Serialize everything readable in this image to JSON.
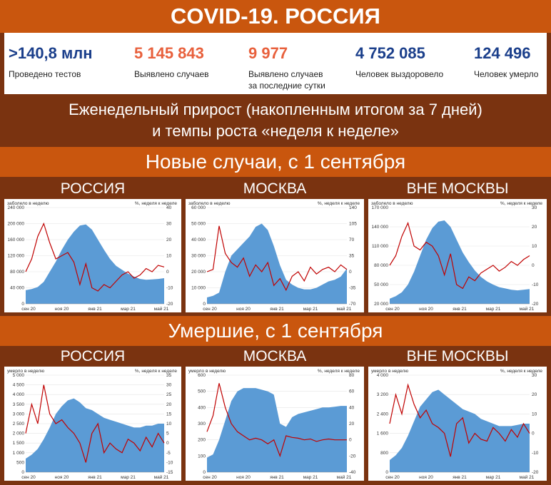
{
  "title": "COVID-19. РОССИЯ",
  "stats": [
    {
      "value": ">140,8 млн",
      "label": "Проведено тестов",
      "color": "#1b3f8b"
    },
    {
      "value": "5 145 843",
      "label": "Выявлено случаев",
      "color": "#e8603c"
    },
    {
      "value": "9 977",
      "label": "Выявлено случаев\nза последние сутки",
      "color": "#e8603c"
    },
    {
      "value": "4 752 085",
      "label": "Человек выздоровело",
      "color": "#1b3f8b"
    },
    {
      "value": "124 496",
      "label": "Человек умерло",
      "color": "#1b3f8b"
    }
  ],
  "subtitle_line1": "Еженедельный прирост (накопленным итогом за 7 дней)",
  "subtitle_line2": "и темпы роста «неделя к неделе»",
  "section_cases": "Новые случаи, с 1 сентября",
  "section_deaths": "Умершие, с 1 сентября",
  "region_labels": [
    "РОССИЯ",
    "МОСКВА",
    "ВНЕ МОСКВЫ"
  ],
  "colors": {
    "area": "#5b9bd5",
    "line": "#c00000"
  },
  "chart_data": [
    {
      "type": "area",
      "name": "cases-russia",
      "ylabel_left": "заболело в неделю",
      "ylabel_right": "%, неделя к неделе",
      "x_ticks": [
        "сен 20",
        "ноя 20",
        "янв 21",
        "мар 21",
        "май 21"
      ],
      "y_left_ticks": [
        "240 000",
        "200 000",
        "160 000",
        "120 000",
        "80 000",
        "40 000",
        "0"
      ],
      "y_left_lim": [
        0,
        240000
      ],
      "y_right_ticks": [
        "40",
        "30",
        "20",
        "10",
        "0",
        "-10",
        "-20"
      ],
      "y_right_lim": [
        -20,
        40
      ],
      "area_values": [
        34000,
        37000,
        42000,
        55000,
        80000,
        105000,
        135000,
        160000,
        180000,
        195000,
        198000,
        185000,
        160000,
        135000,
        112000,
        95000,
        85000,
        75000,
        68000,
        62000,
        60000,
        61000,
        62000,
        64000
      ],
      "line_values": [
        0,
        8,
        22,
        30,
        18,
        8,
        10,
        12,
        6,
        -8,
        5,
        -10,
        -12,
        -8,
        -10,
        -6,
        -2,
        0,
        -4,
        -2,
        2,
        0,
        4,
        3
      ]
    },
    {
      "type": "area",
      "name": "cases-moscow",
      "ylabel_left": "заболело в неделю",
      "ylabel_right": "%, неделя к неделе",
      "x_ticks": [
        "сен 20",
        "ноя 20",
        "янв 21",
        "мар 21",
        "май 21"
      ],
      "y_left_ticks": [
        "60 000",
        "50 000",
        "40 000",
        "30 000",
        "20 000",
        "10 000",
        "0"
      ],
      "y_left_lim": [
        0,
        60000
      ],
      "y_right_ticks": [
        "140",
        "105",
        "70",
        "35",
        "0",
        "-35",
        "-70"
      ],
      "y_right_lim": [
        -70,
        140
      ],
      "area_values": [
        4000,
        5000,
        7000,
        20000,
        30000,
        34000,
        38000,
        42000,
        48000,
        50000,
        46000,
        36000,
        24000,
        15000,
        12000,
        10000,
        9000,
        9000,
        10000,
        12000,
        14000,
        15000,
        17000,
        22000
      ],
      "line_values": [
        0,
        5,
        100,
        40,
        20,
        10,
        30,
        -10,
        15,
        0,
        20,
        -30,
        -15,
        -40,
        -10,
        0,
        -20,
        10,
        -5,
        5,
        10,
        0,
        15,
        5
      ]
    },
    {
      "type": "area",
      "name": "cases-outside",
      "ylabel_left": "заболело в неделю",
      "ylabel_right": "%, неделя к неделе",
      "x_ticks": [
        "сен 20",
        "ноя 20",
        "янв 21",
        "мар 21",
        "май 21"
      ],
      "y_left_ticks": [
        "170 000",
        "140 000",
        "110 000",
        "80 000",
        "50 000",
        "20 000"
      ],
      "y_left_lim": [
        20000,
        170000
      ],
      "y_right_ticks": [
        "30",
        "20",
        "10",
        "0",
        "-10",
        "-20"
      ],
      "y_right_lim": [
        -20,
        30
      ],
      "area_values": [
        28000,
        32000,
        38000,
        50000,
        70000,
        95000,
        120000,
        138000,
        148000,
        150000,
        140000,
        120000,
        100000,
        85000,
        72000,
        62000,
        55000,
        50000,
        46000,
        44000,
        42000,
        41000,
        42000,
        43000
      ],
      "line_values": [
        0,
        5,
        15,
        22,
        10,
        8,
        12,
        10,
        5,
        -5,
        6,
        -10,
        -12,
        -6,
        -8,
        -4,
        -2,
        0,
        -3,
        -1,
        2,
        0,
        3,
        5
      ]
    },
    {
      "type": "area",
      "name": "deaths-russia",
      "ylabel_left": "умерло в неделю",
      "ylabel_right": "%, неделя к неделе",
      "x_ticks": [
        "сен 20",
        "ноя 20",
        "янв 21",
        "мар 21",
        "май 21"
      ],
      "y_left_ticks": [
        "5 000",
        "4 500",
        "4 000",
        "3 500",
        "3 000",
        "2 500",
        "2 000",
        "1 500",
        "1 000",
        "500",
        "0"
      ],
      "y_left_lim": [
        0,
        5000
      ],
      "y_right_ticks": [
        "35",
        "30",
        "25",
        "20",
        "15",
        "10",
        "5",
        "0",
        "-5",
        "-10",
        "-15"
      ],
      "y_right_lim": [
        -15,
        35
      ],
      "area_values": [
        700,
        900,
        1200,
        1700,
        2300,
        3000,
        3400,
        3700,
        3800,
        3600,
        3300,
        3200,
        3000,
        2800,
        2700,
        2600,
        2500,
        2400,
        2300,
        2300,
        2400,
        2400,
        2500,
        2500
      ],
      "line_values": [
        5,
        20,
        10,
        30,
        15,
        10,
        12,
        8,
        5,
        0,
        -10,
        5,
        10,
        -5,
        0,
        -3,
        -5,
        2,
        0,
        -4,
        3,
        -2,
        5,
        0
      ]
    },
    {
      "type": "area",
      "name": "deaths-moscow",
      "ylabel_left": "умерло в неделю",
      "ylabel_right": "%, неделя к неделе",
      "x_ticks": [
        "сен 20",
        "ноя 20",
        "янв 21",
        "мар 21",
        "май 21"
      ],
      "y_left_ticks": [
        "600",
        "500",
        "400",
        "300",
        "200",
        "100",
        "0"
      ],
      "y_left_lim": [
        0,
        600
      ],
      "y_right_ticks": [
        "80",
        "60",
        "40",
        "20",
        "0",
        "-20",
        "-40"
      ],
      "y_right_lim": [
        -40,
        80
      ],
      "area_values": [
        90,
        110,
        200,
        320,
        440,
        500,
        520,
        520,
        520,
        510,
        500,
        480,
        300,
        280,
        340,
        360,
        370,
        380,
        390,
        400,
        400,
        405,
        410,
        410
      ],
      "line_values": [
        10,
        30,
        70,
        40,
        20,
        10,
        5,
        0,
        2,
        0,
        -5,
        0,
        -20,
        5,
        3,
        2,
        0,
        1,
        -2,
        0,
        1,
        0,
        0,
        0
      ]
    },
    {
      "type": "area",
      "name": "deaths-outside",
      "ylabel_left": "умерло в неделю",
      "ylabel_right": "%, неделя к неделе",
      "x_ticks": [
        "сен 20",
        "ноя 20",
        "янв 21",
        "мар 21",
        "май 21"
      ],
      "y_left_ticks": [
        "4 000",
        "3 200",
        "2 400",
        "1 600",
        "800",
        "0"
      ],
      "y_left_lim": [
        0,
        4000
      ],
      "y_right_ticks": [
        "30",
        "20",
        "10",
        "0",
        "-10",
        "-20"
      ],
      "y_right_lim": [
        -20,
        30
      ],
      "area_values": [
        500,
        700,
        1000,
        1500,
        2100,
        2700,
        3000,
        3300,
        3400,
        3200,
        3000,
        2800,
        2600,
        2500,
        2400,
        2200,
        2100,
        2000,
        1900,
        1900,
        1900,
        1950,
        2000,
        2000
      ],
      "line_values": [
        5,
        20,
        10,
        25,
        15,
        8,
        12,
        5,
        3,
        0,
        -12,
        5,
        8,
        -5,
        0,
        -3,
        -4,
        3,
        0,
        -4,
        2,
        -2,
        5,
        0
      ]
    }
  ]
}
